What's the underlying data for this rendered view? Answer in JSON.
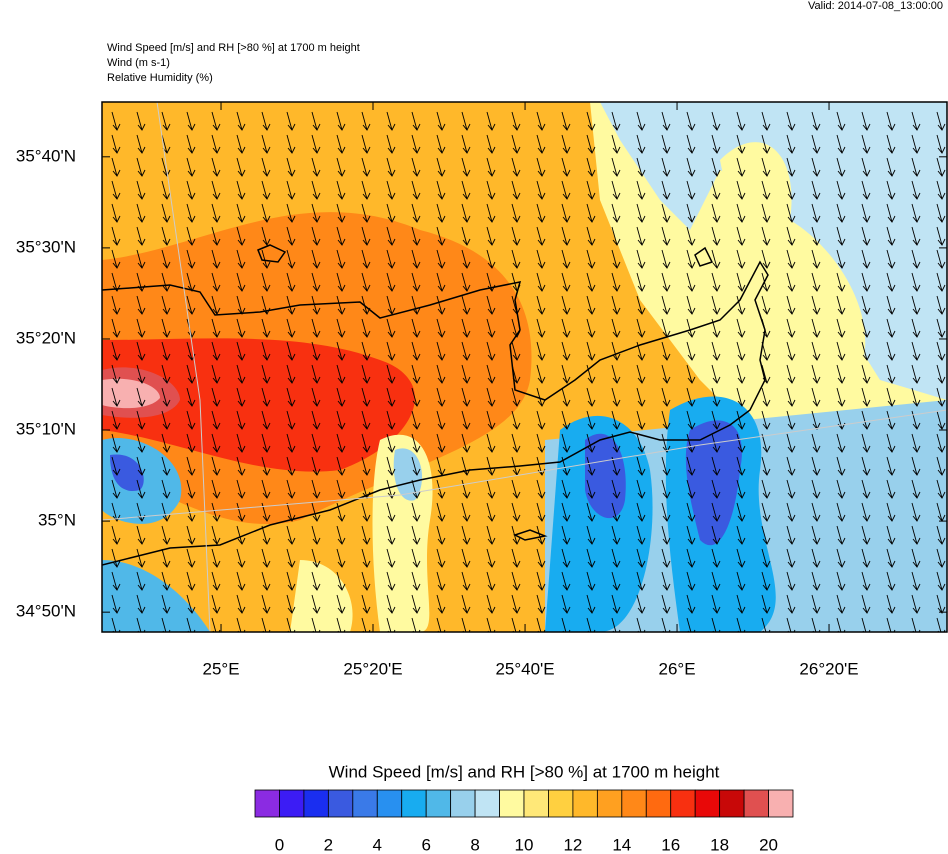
{
  "header": {
    "valid": "Valid: 2014-07-08_13:00:00",
    "lines": [
      "Wind Speed [m/s] and RH [>80 %] at 1700 m height",
      "Wind   (m s-1)",
      "Relative Humidity   (%)"
    ]
  },
  "map": {
    "lonlim": [
      24.739,
      26.592
    ],
    "latlim": [
      34.797,
      35.767
    ],
    "lon_ticks": [
      {
        "value": 25,
        "label": "25°E"
      },
      {
        "value": 25.3333,
        "label": "25°20'E"
      },
      {
        "value": 25.6667,
        "label": "25°40'E"
      },
      {
        "value": 26,
        "label": "26°E"
      },
      {
        "value": 26.3333,
        "label": "26°20'E"
      }
    ],
    "lat_ticks": [
      {
        "value": 35.6667,
        "label": "35°40'N"
      },
      {
        "value": 35.5,
        "label": "35°30'N"
      },
      {
        "value": 35.3333,
        "label": "35°20'N"
      },
      {
        "value": 35.1667,
        "label": "35°10'N"
      },
      {
        "value": 35,
        "label": "35°N"
      },
      {
        "value": 34.8333,
        "label": "34°50'N"
      }
    ]
  },
  "colorbar": {
    "title": "Wind Speed [m/s] and RH [>80 %] at 1700 m height",
    "range": [
      -1,
      21
    ],
    "colors": [
      "#8b2be2",
      "#3c1cf5",
      "#1a2ef0",
      "#3a5ae0",
      "#3a7ae8",
      "#2890f0",
      "#18acf0",
      "#50b8e8",
      "#98d0ec",
      "#c0e4f4",
      "#fffaa0",
      "#ffe878",
      "#ffd040",
      "#ffb82a",
      "#ffa020",
      "#ff8818",
      "#ff6a10",
      "#f83010",
      "#e80808",
      "#c80808",
      "#e05050",
      "#f8b0b0"
    ],
    "ticks": [
      0,
      2,
      4,
      6,
      8,
      10,
      12,
      14,
      16,
      18,
      20
    ]
  }
}
